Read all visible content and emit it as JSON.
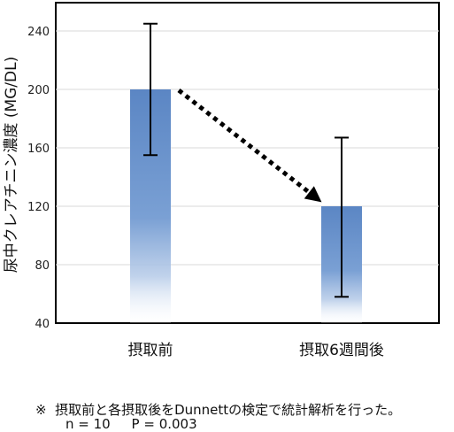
{
  "chart_data": {
    "type": "bar",
    "categories": [
      "摂取前",
      "摂取6週間後"
    ],
    "values": [
      200,
      120
    ],
    "error_upper": [
      245,
      167
    ],
    "error_lower": [
      155,
      58
    ],
    "ylabel": "尿中クレアチニン濃度 (MG/DL)",
    "ylim": [
      40,
      260
    ],
    "yticks": [
      40,
      80,
      120,
      160,
      200,
      240
    ],
    "tick_labels": [
      "40",
      "80",
      "120",
      "160",
      "200",
      "240"
    ],
    "grid": true,
    "bar_color": "#5b86c4",
    "annotation": "dotted-arrow"
  },
  "footnote": {
    "line1": "※  摂取前と各摂取後をDunnettの検定で統計解析を行った。",
    "line2": "n = 10     P = 0.003"
  }
}
